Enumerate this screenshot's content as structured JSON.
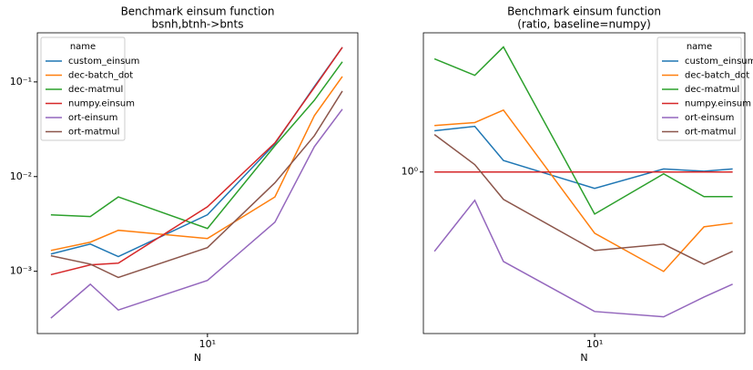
{
  "chart_data": [
    {
      "type": "line",
      "title": "Benchmark einsum function",
      "subtitle": "bsnh,btnh->bnts",
      "xlabel": "N",
      "x": [
        2,
        3,
        4,
        10,
        20,
        30,
        40
      ],
      "xscale": "log",
      "yscale": "log",
      "xlim": [
        1.74,
        46.9
      ],
      "ylim": [
        0.00022,
        0.33
      ],
      "xticks": [
        {
          "value": 10,
          "label": "10¹"
        }
      ],
      "yticks": [
        {
          "value": 0.001,
          "label": "10⁻³"
        },
        {
          "value": 0.01,
          "label": "10⁻²"
        },
        {
          "value": 0.1,
          "label": "10⁻¹"
        }
      ],
      "legend_title": "name",
      "legend": "upper left",
      "series": [
        {
          "name": "custom_einsum",
          "color": "#1f77b4",
          "values": [
            0.00152,
            0.00194,
            0.00143,
            0.00395,
            0.0222,
            0.0895,
            0.232
          ]
        },
        {
          "name": "dec-batch_dot",
          "color": "#ff7f0e",
          "values": [
            0.00166,
            0.00203,
            0.00271,
            0.00222,
            0.0061,
            0.044,
            0.114
          ]
        },
        {
          "name": "dec-matmul",
          "color": "#2ca02c",
          "values": [
            0.00395,
            0.00378,
            0.0061,
            0.00283,
            0.0212,
            0.064,
            0.163
          ]
        },
        {
          "name": "numpy.einsum",
          "color": "#d62728",
          "values": [
            0.00092,
            0.00117,
            0.00122,
            0.0048,
            0.0227,
            0.0875,
            0.232
          ]
        },
        {
          "name": "ort-einsum",
          "color": "#9467bd",
          "values": [
            0.00032,
            0.00073,
            0.00039,
            0.0008,
            0.0033,
            0.0207,
            0.0515
          ]
        },
        {
          "name": "ort-matmul",
          "color": "#8c564b",
          "values": [
            0.00146,
            0.00119,
            0.00086,
            0.00178,
            0.0086,
            0.027,
            0.08
          ]
        }
      ]
    },
    {
      "type": "line",
      "title": "Benchmark einsum function",
      "subtitle": "(ratio, baseline=numpy)",
      "xlabel": "N",
      "x": [
        2,
        3,
        4,
        10,
        20,
        30,
        40
      ],
      "xscale": "log",
      "yscale": "log",
      "xlim": [
        1.79,
        45.2
      ],
      "ylim": [
        0.125,
        6.0
      ],
      "xticks": [
        {
          "value": 10,
          "label": "10¹"
        }
      ],
      "yticks": [
        {
          "value": 1,
          "label": "10⁰"
        }
      ],
      "legend_title": "name",
      "legend": "upper right",
      "series": [
        {
          "name": "custom_einsum",
          "color": "#1f77b4",
          "values": [
            1.7,
            1.8,
            1.16,
            0.81,
            1.04,
            1.01,
            1.04
          ]
        },
        {
          "name": "dec-batch_dot",
          "color": "#ff7f0e",
          "values": [
            1.82,
            1.89,
            2.22,
            0.455,
            0.278,
            0.494,
            0.518
          ]
        },
        {
          "name": "dec-matmul",
          "color": "#2ca02c",
          "values": [
            4.29,
            3.47,
            5.0,
            0.582,
            0.977,
            0.728,
            0.728
          ]
        },
        {
          "name": "numpy.einsum",
          "color": "#d62728",
          "values": [
            1,
            1,
            1,
            1,
            1,
            1,
            1
          ]
        },
        {
          "name": "ort-einsum",
          "color": "#9467bd",
          "values": [
            0.36,
            0.695,
            0.316,
            0.166,
            0.155,
            0.2,
            0.236
          ]
        },
        {
          "name": "ort-matmul",
          "color": "#8c564b",
          "values": [
            1.62,
            1.1,
            0.703,
            0.364,
            0.395,
            0.305,
            0.36
          ]
        }
      ]
    }
  ]
}
